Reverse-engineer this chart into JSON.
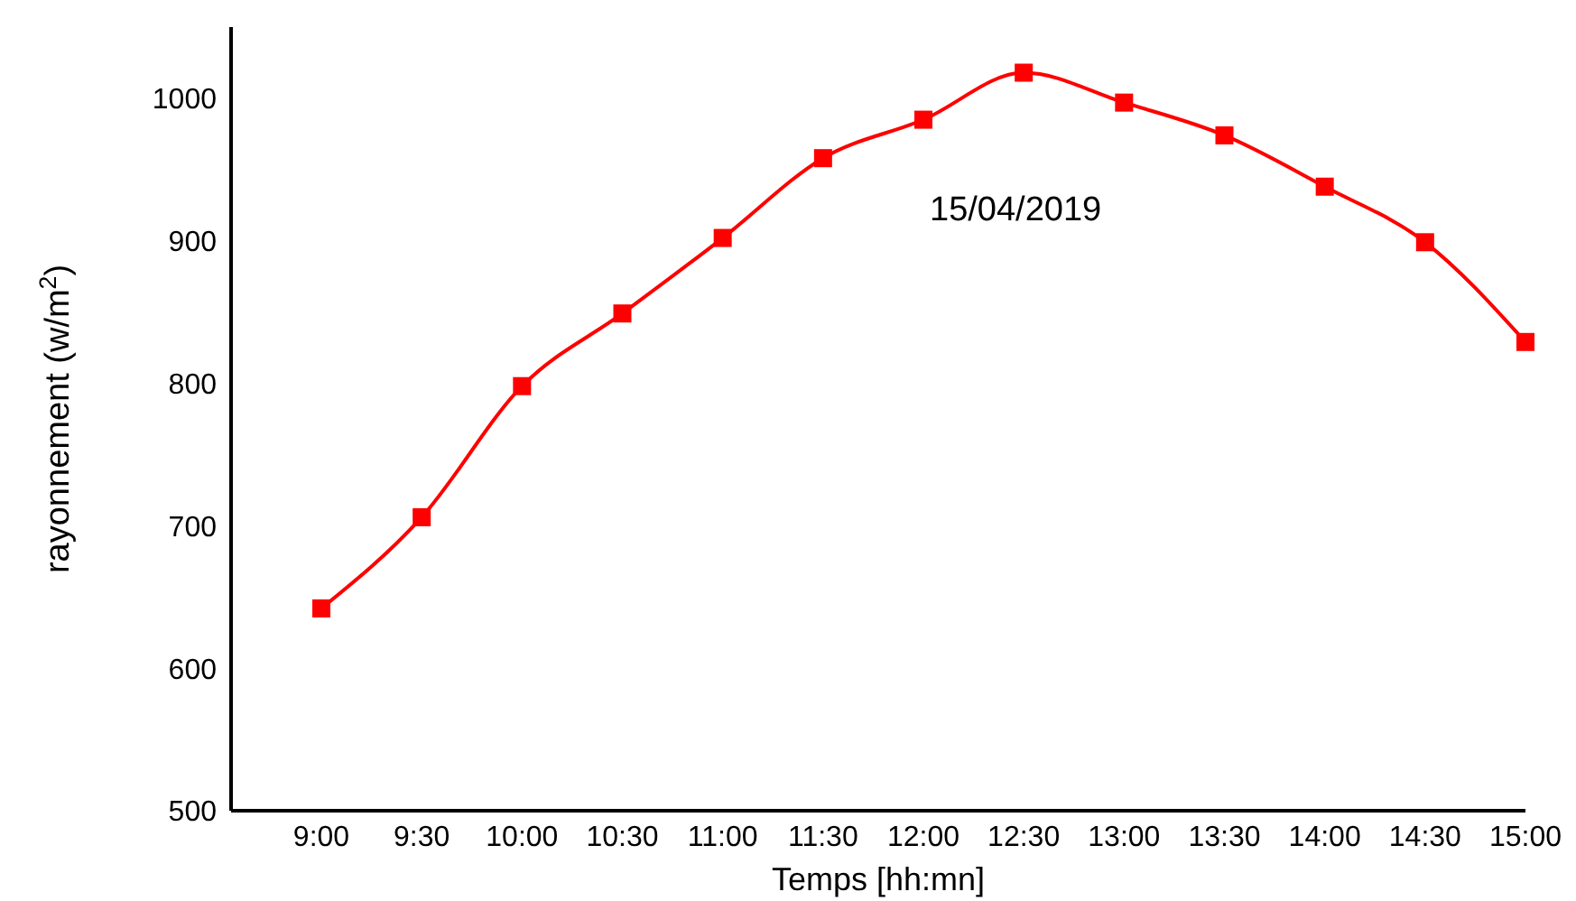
{
  "chart_data": {
    "type": "line",
    "xlabel": "Temps [hh:mn]",
    "ylabel": "rayonnement (w/m$^{2}$)",
    "annotations": [
      "15/04/2019"
    ],
    "categories": [
      "9:00",
      "9:30",
      "10:00",
      "10:30",
      "11:00",
      "11:30",
      "12:00",
      "12:30",
      "13:00",
      "13:30",
      "14:00",
      "14:30",
      "15:00"
    ],
    "series": [
      {
        "color": "#ff0000",
        "values": [
          642,
          706,
          798,
          849,
          902,
          958,
          985,
          1018,
          997,
          974,
          938,
          899,
          829
        ]
      }
    ],
    "ylim": [
      500,
      1050
    ],
    "yticks": [
      500,
      600,
      700,
      800,
      900,
      1000
    ],
    "marker": "square",
    "line_style": "solid",
    "grid": false,
    "legend": false
  }
}
